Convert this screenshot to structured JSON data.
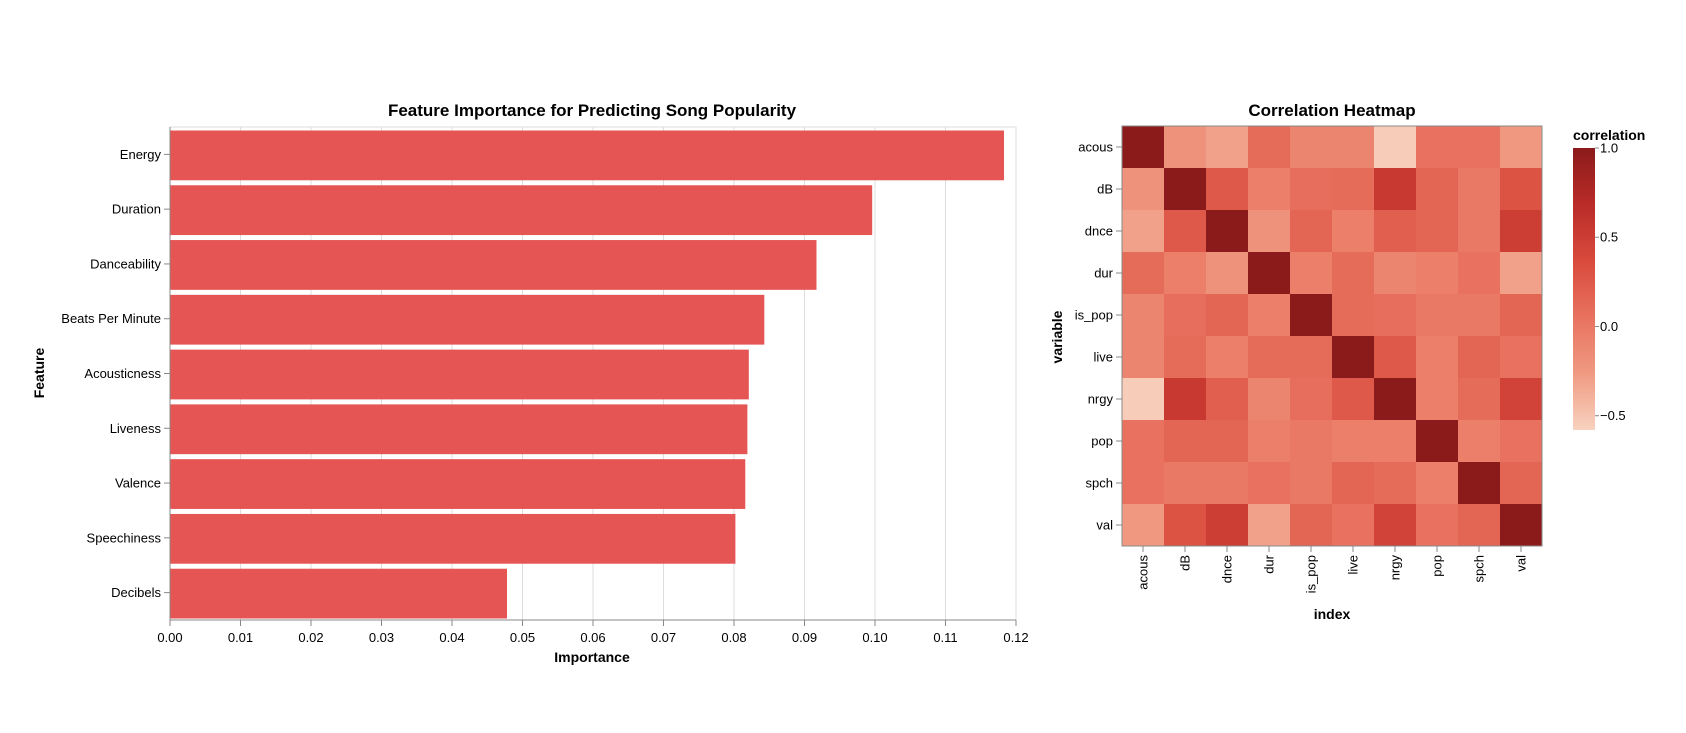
{
  "chart_data": [
    {
      "type": "bar",
      "orientation": "horizontal",
      "title": "Feature Importance for Predicting Song Popularity",
      "xlabel": "Importance",
      "ylabel": "Feature",
      "categories": [
        "Energy",
        "Duration",
        "Danceability",
        "Beats Per Minute",
        "Acousticness",
        "Liveness",
        "Valence",
        "Speechiness",
        "Decibels"
      ],
      "values": [
        0.1183,
        0.0996,
        0.0917,
        0.0843,
        0.0821,
        0.0819,
        0.0816,
        0.0802,
        0.0478
      ],
      "xlim": [
        0,
        0.12
      ],
      "xticks": [
        "0.00",
        "0.01",
        "0.02",
        "0.03",
        "0.04",
        "0.05",
        "0.06",
        "0.07",
        "0.08",
        "0.09",
        "0.10",
        "0.11",
        "0.12"
      ],
      "grid": true,
      "bar_color": "#e45553"
    },
    {
      "type": "heatmap",
      "title": "Correlation Heatmap",
      "xlabel": "index",
      "ylabel": "variable",
      "x": [
        "acous",
        "dB",
        "dnce",
        "dur",
        "is_pop",
        "live",
        "nrgy",
        "pop",
        "spch",
        "val"
      ],
      "y": [
        "acous",
        "dB",
        "dnce",
        "dur",
        "is_pop",
        "live",
        "nrgy",
        "pop",
        "spch",
        "val"
      ],
      "values": [
        [
          1.0,
          -0.2,
          -0.3,
          0.1,
          -0.1,
          -0.1,
          -0.55,
          0.05,
          0.05,
          -0.25
        ],
        [
          -0.2,
          1.0,
          0.25,
          -0.05,
          0.08,
          0.1,
          0.55,
          0.15,
          0.0,
          0.3
        ],
        [
          -0.3,
          0.25,
          1.0,
          -0.2,
          0.15,
          -0.05,
          0.2,
          0.15,
          0.0,
          0.5
        ],
        [
          0.1,
          -0.05,
          -0.2,
          1.0,
          -0.05,
          0.1,
          -0.1,
          -0.05,
          0.05,
          -0.3
        ],
        [
          -0.1,
          0.08,
          0.15,
          -0.05,
          1.0,
          0.1,
          0.08,
          0.0,
          0.0,
          0.15
        ],
        [
          -0.1,
          0.1,
          -0.05,
          0.1,
          0.1,
          1.0,
          0.25,
          -0.05,
          0.15,
          0.05
        ],
        [
          -0.55,
          0.55,
          0.2,
          -0.1,
          0.08,
          0.25,
          1.0,
          -0.05,
          0.1,
          0.45
        ],
        [
          0.05,
          0.15,
          0.15,
          -0.05,
          0.0,
          -0.05,
          -0.05,
          1.0,
          -0.05,
          0.05
        ],
        [
          0.05,
          0.0,
          0.0,
          0.05,
          0.0,
          0.15,
          0.1,
          -0.05,
          1.0,
          0.15
        ],
        [
          -0.25,
          0.3,
          0.5,
          -0.3,
          0.15,
          0.05,
          0.45,
          0.05,
          0.15,
          1.0
        ]
      ],
      "color_range": [
        -0.58,
        1.0
      ],
      "legend": {
        "title": "correlation",
        "position": "right",
        "ticks": [
          "1.0",
          "0.5",
          "0.0",
          "−0.5"
        ],
        "tick_values": [
          1.0,
          0.5,
          0.0,
          -0.5
        ],
        "colors": [
          "#f8d2bf",
          "#f09a82",
          "#e8725f",
          "#d94a3d",
          "#b92c28",
          "#8b1b1b"
        ]
      }
    }
  ]
}
